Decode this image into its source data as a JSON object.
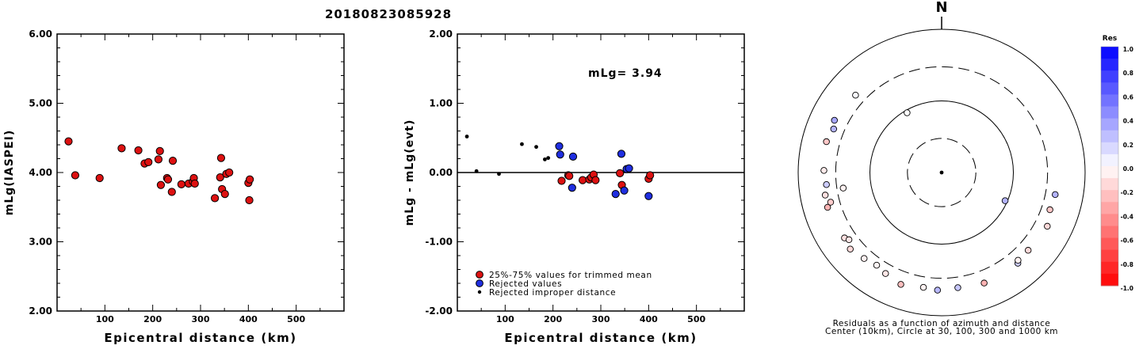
{
  "figure_title": "20180823085928",
  "chart_data": [
    {
      "type": "scatter",
      "title": "",
      "xlabel": "Epicentral distance (km)",
      "ylabel": "mLg(IASPEI)",
      "xlim": [
        0,
        600
      ],
      "ylim": [
        2.0,
        6.0
      ],
      "x_ticks": [
        {
          "v": 100,
          "label": "100"
        },
        {
          "v": 200,
          "label": "200"
        },
        {
          "v": 300,
          "label": "300"
        },
        {
          "v": 400,
          "label": "400"
        },
        {
          "v": 500,
          "label": "500"
        }
      ],
      "y_ticks": [
        {
          "v": 2.0,
          "label": "2.00"
        },
        {
          "v": 3.0,
          "label": "3.00"
        },
        {
          "v": 4.0,
          "label": "4.00"
        },
        {
          "v": 5.0,
          "label": "5.00"
        },
        {
          "v": 6.0,
          "label": "6.00"
        }
      ],
      "marker_color": "#dd1111",
      "series": [
        {
          "points": [
            [
              24,
              4.45
            ],
            [
              38,
              3.96
            ],
            [
              89,
              3.92
            ],
            [
              135,
              4.35
            ],
            [
              170,
              4.32
            ],
            [
              183,
              4.13
            ],
            [
              191,
              4.15
            ],
            [
              212,
              4.19
            ],
            [
              215,
              4.31
            ],
            [
              217,
              3.82
            ],
            [
              230,
              3.92
            ],
            [
              232,
              3.9
            ],
            [
              240,
              3.72
            ],
            [
              242,
              4.17
            ],
            [
              260,
              3.83
            ],
            [
              275,
              3.84
            ],
            [
              284,
              3.87
            ],
            [
              286,
              3.92
            ],
            [
              288,
              3.84
            ],
            [
              330,
              3.63
            ],
            [
              341,
              3.93
            ],
            [
              343,
              4.21
            ],
            [
              345,
              3.76
            ],
            [
              351,
              3.69
            ],
            [
              354,
              3.98
            ],
            [
              360,
              4.0
            ],
            [
              400,
              3.85
            ],
            [
              402,
              3.6
            ],
            [
              403,
              3.9
            ]
          ]
        }
      ]
    },
    {
      "type": "scatter",
      "title": "",
      "xlabel": "Epicentral distance (km)",
      "ylabel": "mLg - mLg(evt)",
      "xlim": [
        0,
        600
      ],
      "ylim": [
        -2.0,
        2.0
      ],
      "annotation": "mLg= 3.94",
      "x_ticks": [
        {
          "v": 100,
          "label": "100"
        },
        {
          "v": 200,
          "label": "200"
        },
        {
          "v": 300,
          "label": "300"
        },
        {
          "v": 400,
          "label": "400"
        },
        {
          "v": 500,
          "label": "500"
        }
      ],
      "y_ticks": [
        {
          "v": -2.0,
          "label": "-2.00"
        },
        {
          "v": -1.0,
          "label": "-1.00"
        },
        {
          "v": 0.0,
          "label": "0.00"
        },
        {
          "v": 1.0,
          "label": "1.00"
        },
        {
          "v": 2.0,
          "label": "2.00"
        }
      ],
      "zero_line": true,
      "legend_position": "bottom-left",
      "series": [
        {
          "name": "25%-75% values for trimmed mean",
          "color": "#dd1111",
          "marker": "large-circle",
          "points": [
            [
              218,
              -0.12
            ],
            [
              232,
              -0.04
            ],
            [
              234,
              -0.05
            ],
            [
              262,
              -0.11
            ],
            [
              276,
              -0.1
            ],
            [
              280,
              -0.07
            ],
            [
              285,
              -0.03
            ],
            [
              289,
              -0.11
            ],
            [
              340,
              -0.01
            ],
            [
              344,
              -0.18
            ],
            [
              400,
              -0.09
            ],
            [
              403,
              -0.04
            ]
          ]
        },
        {
          "name": "Rejected values",
          "color": "#1f2ee0",
          "marker": "large-circle",
          "points": [
            [
              213,
              0.38
            ],
            [
              215,
              0.26
            ],
            [
              240,
              -0.22
            ],
            [
              242,
              0.23
            ],
            [
              331,
              -0.31
            ],
            [
              343,
              0.27
            ],
            [
              349,
              -0.26
            ],
            [
              354,
              0.05
            ],
            [
              359,
              0.06
            ],
            [
              400,
              -0.34
            ]
          ]
        },
        {
          "name": "Rejected improper distance",
          "color": "#000000",
          "marker": "small-dot",
          "points": [
            [
              20,
              0.52
            ],
            [
              40,
              0.02
            ],
            [
              87,
              -0.02
            ],
            [
              135,
              0.41
            ],
            [
              165,
              0.37
            ],
            [
              183,
              0.19
            ],
            [
              190,
              0.21
            ]
          ]
        }
      ]
    },
    {
      "type": "scatter",
      "subtype": "polar-residuals",
      "north_label": "N",
      "caption_lines": [
        "Residuals as a function of azimuth and distance",
        "Center (10km), Circle at 30, 100, 300 and 1000 km"
      ],
      "ring_distances_km": [
        30,
        100,
        300,
        1000
      ],
      "center_km": 10,
      "colorbar": {
        "title": "Res",
        "min": -1.0,
        "max": 1.0,
        "tick_labels": [
          {
            "v": 1.0,
            "label": "1.0"
          },
          {
            "v": 0.8,
            "label": "0.8"
          },
          {
            "v": 0.6,
            "label": "0.6"
          },
          {
            "v": 0.4,
            "label": "0.4"
          },
          {
            "v": 0.2,
            "label": "0.2"
          },
          {
            "v": 0.0,
            "label": "0.0"
          },
          {
            "v": -0.2,
            "label": "-0.2"
          },
          {
            "v": -0.4,
            "label": "-0.4"
          },
          {
            "v": -0.6,
            "label": "-0.6"
          },
          {
            "v": -0.8,
            "label": "-0.8"
          },
          {
            "v": -1.0,
            "label": "-1.0"
          }
        ],
        "positive_color": "#0000ff",
        "negative_color": "#ff0000"
      },
      "stations": [
        {
          "az": 114,
          "dist": 93,
          "res": 0.3
        },
        {
          "az": 330,
          "dist": 92,
          "res": 0.0
        },
        {
          "az": 312,
          "dist": 412,
          "res": 0.02
        },
        {
          "az": 292,
          "dist": 420,
          "res": 0.3
        },
        {
          "az": 296,
          "dist": 460,
          "res": 0.35
        },
        {
          "az": 285,
          "dist": 460,
          "res": -0.22
        },
        {
          "az": 271,
          "dist": 438,
          "res": -0.08
        },
        {
          "az": 264,
          "dist": 412,
          "res": 0.2
        },
        {
          "az": 259,
          "dist": 450,
          "res": -0.12
        },
        {
          "az": 255,
          "dist": 400,
          "res": -0.2
        },
        {
          "az": 253,
          "dist": 460,
          "res": -0.3
        },
        {
          "az": 261,
          "dist": 245,
          "res": -0.05
        },
        {
          "az": 236,
          "dist": 430,
          "res": -0.12
        },
        {
          "az": 234,
          "dist": 395,
          "res": -0.1
        },
        {
          "az": 230,
          "dist": 460,
          "res": -0.15
        },
        {
          "az": 222,
          "dist": 412,
          "res": -0.05
        },
        {
          "az": 215,
          "dist": 380,
          "res": -0.04
        },
        {
          "az": 209,
          "dist": 410,
          "res": -0.1
        },
        {
          "az": 200,
          "dist": 460,
          "res": -0.25
        },
        {
          "az": 189,
          "dist": 420,
          "res": -0.05
        },
        {
          "az": 182,
          "dist": 440,
          "res": 0.28
        },
        {
          "az": 172,
          "dist": 420,
          "res": 0.22
        },
        {
          "az": 159,
          "dist": 450,
          "res": -0.3
        },
        {
          "az": 140,
          "dist": 450,
          "res": 0.2
        },
        {
          "az": 139,
          "dist": 420,
          "res": -0.05
        },
        {
          "az": 132,
          "dist": 420,
          "res": -0.15
        },
        {
          "az": 117,
          "dist": 450,
          "res": -0.15
        },
        {
          "az": 109,
          "dist": 395,
          "res": -0.22
        },
        {
          "az": 101,
          "dist": 410,
          "res": 0.3
        }
      ]
    }
  ]
}
